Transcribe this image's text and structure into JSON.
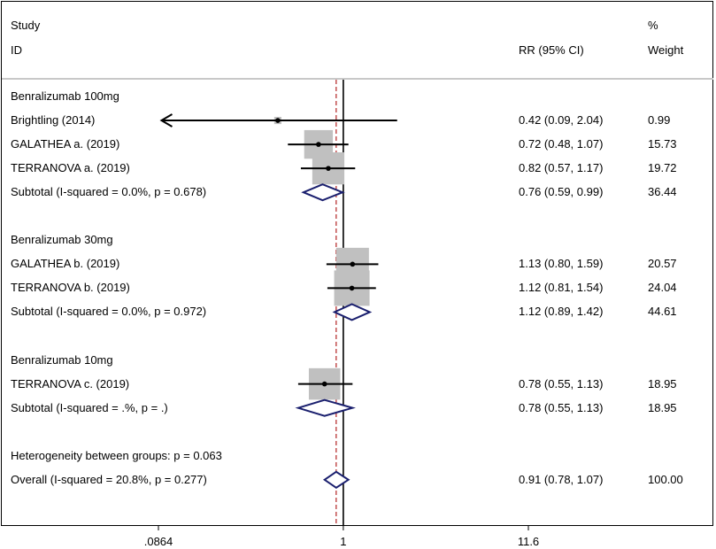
{
  "header": {
    "study_line1": "Study",
    "study_line2": "ID",
    "rr_label": "RR (95% CI)",
    "weight_line1": "%",
    "weight_line2": "Weight"
  },
  "chart_data": {
    "type": "forest",
    "scale": "log",
    "null_value": 1,
    "overall_estimate": 0.91,
    "x_ticks": [
      {
        "value": 0.0864,
        "label": ".0864"
      },
      {
        "value": 1,
        "label": "1"
      },
      {
        "value": 11.6,
        "label": "11.6"
      }
    ],
    "xlim": [
      0.0864,
      11.6
    ],
    "rows": [
      {
        "kind": "group",
        "label": "Benralizumab 100mg"
      },
      {
        "kind": "study",
        "label": "Brightling (2014)",
        "rr": 0.42,
        "lo": 0.09,
        "hi": 2.04,
        "ci_text": "0.42 (0.09, 2.04)",
        "weight": 0.99,
        "weight_text": "0.99",
        "arrow_left": true
      },
      {
        "kind": "study",
        "label": "GALATHEA a. (2019)",
        "rr": 0.72,
        "lo": 0.48,
        "hi": 1.07,
        "ci_text": "0.72 (0.48, 1.07)",
        "weight": 15.73,
        "weight_text": "15.73"
      },
      {
        "kind": "study",
        "label": "TERRANOVA a. (2019)",
        "rr": 0.82,
        "lo": 0.57,
        "hi": 1.17,
        "ci_text": "0.82 (0.57, 1.17)",
        "weight": 19.72,
        "weight_text": "19.72"
      },
      {
        "kind": "subtotal",
        "label": "Subtotal  (I-squared = 0.0%, p = 0.678)",
        "rr": 0.76,
        "lo": 0.59,
        "hi": 0.99,
        "ci_text": "0.76 (0.59, 0.99)",
        "weight": 36.44,
        "weight_text": "36.44"
      },
      {
        "kind": "gap"
      },
      {
        "kind": "group",
        "label": "Benralizumab 30mg"
      },
      {
        "kind": "study",
        "label": "GALATHEA b. (2019)",
        "rr": 1.13,
        "lo": 0.8,
        "hi": 1.59,
        "ci_text": "1.13 (0.80, 1.59)",
        "weight": 20.57,
        "weight_text": "20.57"
      },
      {
        "kind": "study",
        "label": "TERRANOVA b. (2019)",
        "rr": 1.12,
        "lo": 0.81,
        "hi": 1.54,
        "ci_text": "1.12 (0.81, 1.54)",
        "weight": 24.04,
        "weight_text": "24.04"
      },
      {
        "kind": "subtotal",
        "label": "Subtotal  (I-squared = 0.0%, p = 0.972)",
        "rr": 1.12,
        "lo": 0.89,
        "hi": 1.42,
        "ci_text": "1.12 (0.89, 1.42)",
        "weight": 44.61,
        "weight_text": "44.61"
      },
      {
        "kind": "gap"
      },
      {
        "kind": "group",
        "label": "Benralizumab 10mg"
      },
      {
        "kind": "study",
        "label": "TERRANOVA c. (2019)",
        "rr": 0.78,
        "lo": 0.55,
        "hi": 1.13,
        "ci_text": "0.78 (0.55, 1.13)",
        "weight": 18.95,
        "weight_text": "18.95"
      },
      {
        "kind": "subtotal",
        "label": "Subtotal  (I-squared = .%, p = .)",
        "rr": 0.78,
        "lo": 0.55,
        "hi": 1.13,
        "ci_text": "0.78 (0.55, 1.13)",
        "weight": 18.95,
        "weight_text": "18.95"
      },
      {
        "kind": "gap"
      },
      {
        "kind": "note",
        "label": "Heterogeneity between groups: p = 0.063"
      },
      {
        "kind": "overall",
        "label": "Overall  (I-squared = 20.8%, p = 0.277)",
        "rr": 0.91,
        "lo": 0.78,
        "hi": 1.07,
        "ci_text": "0.91 (0.78, 1.07)",
        "weight": 100.0,
        "weight_text": "100.00"
      }
    ],
    "colors": {
      "box": "#c0c0c0",
      "diamond": "#1a1f6e",
      "null_line": "#000000",
      "overall_line": "#b22222"
    }
  }
}
